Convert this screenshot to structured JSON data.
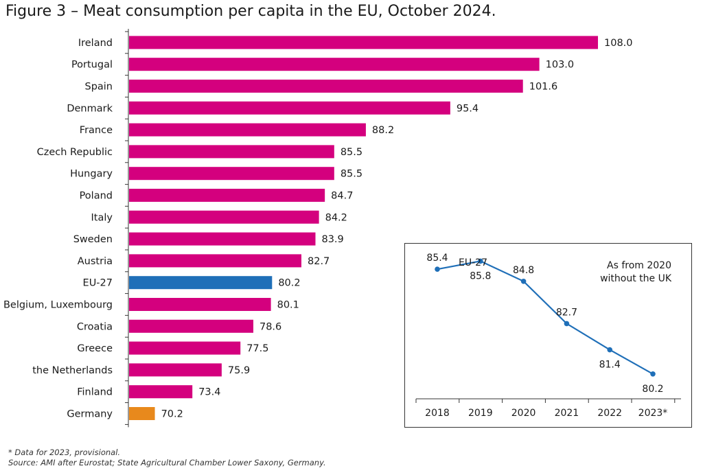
{
  "title": "Figure 3 – Meat consumption per capita in the EU, October 2024.",
  "footnotes": {
    "note": "* Data for 2023, provisional.",
    "source": "Source: AMI after Eurostat; State Agricultural Chamber Lower Saxony, Germany."
  },
  "colors": {
    "bar": "#d4007e",
    "eu": "#1f6fb8",
    "germany": "#e8891c",
    "line": "#1f6fb8"
  },
  "chart_data": [
    {
      "type": "bar",
      "orientation": "horizontal",
      "categories": [
        "Ireland",
        "Portugal",
        "Spain",
        "Denmark",
        "France",
        "Czech Republic",
        "Hungary",
        "Poland",
        "Italy",
        "Sweden",
        "Austria",
        "EU-27",
        "Belgium, Luxembourg",
        "Croatia",
        "Greece",
        "the Netherlands",
        "Finland",
        "Germany"
      ],
      "values": [
        108.0,
        103.0,
        101.6,
        95.4,
        88.2,
        85.5,
        85.5,
        84.7,
        84.2,
        83.9,
        82.7,
        80.2,
        80.1,
        78.6,
        77.5,
        75.9,
        73.4,
        70.2
      ],
      "value_labels": [
        "108.0",
        "103.0",
        "101.6",
        "95.4",
        "88.2",
        "85.5",
        "85.5",
        "84.7",
        "84.2",
        "83.9",
        "82.7",
        "80.2",
        "80.1",
        "78.6",
        "77.5",
        "75.9",
        "73.4",
        "70.2"
      ],
      "highlight": {
        "EU-27": "eu",
        "Germany": "germany"
      },
      "xlim": [
        68,
        108
      ],
      "grid": false
    },
    {
      "type": "line",
      "series": [
        {
          "name": "EU-27",
          "x": [
            "2018",
            "2019",
            "2020",
            "2021",
            "2022",
            "2023*"
          ],
          "values": [
            85.4,
            85.8,
            84.8,
            82.7,
            81.4,
            80.2
          ],
          "value_labels": [
            "85.4",
            "85.8",
            "84.8",
            "82.7",
            "81.4",
            "80.2"
          ]
        }
      ],
      "annotation": [
        "As from 2020",
        "without the UK"
      ],
      "ylim": [
        79.0,
        86.7
      ],
      "grid": false
    }
  ]
}
